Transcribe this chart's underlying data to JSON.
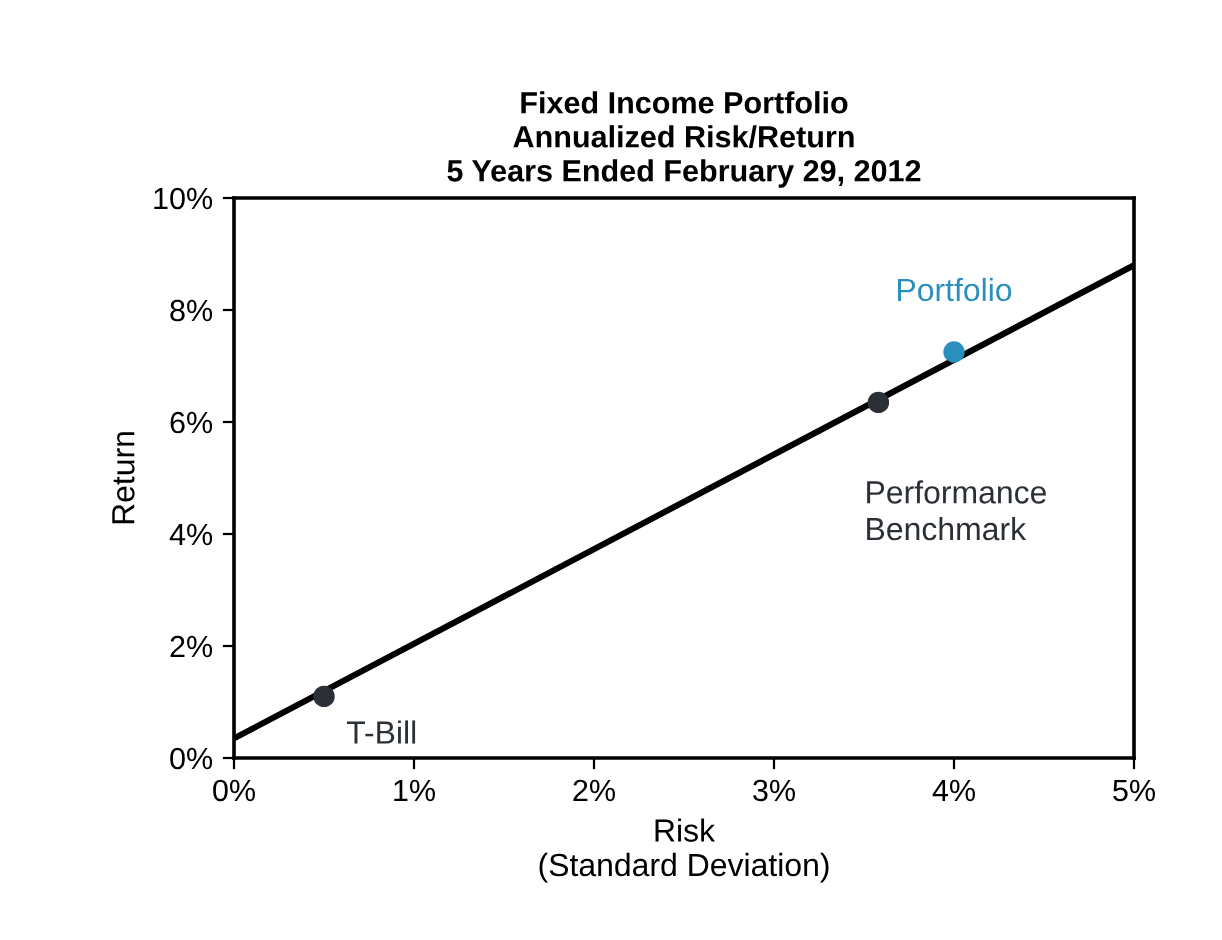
{
  "chart_data": {
    "type": "line",
    "title": "Fixed Income Portfolio\nAnnualized Risk/Return\n5 Years Ended February 29, 2012",
    "xlabel": "Risk\n(Standard Deviation)",
    "ylabel": "Return",
    "series": [
      {
        "color": "#000000",
        "x": [
          0,
          5
        ],
        "values": [
          0.35,
          8.8
        ],
        "marker": "none"
      },
      {
        "type": "scatter",
        "x": [
          0.5,
          3.58,
          4.0
        ],
        "values": [
          1.1,
          6.35,
          7.25
        ],
        "colors": [
          "#2b2f36",
          "#2b2f36",
          "#2a8fbd"
        ],
        "marker": "circle"
      }
    ],
    "annotations": [
      {
        "text": "T-Bill",
        "x": 0.5,
        "y": 1.1
      },
      {
        "text": "Performance\nBenchmark",
        "x": 3.58,
        "y": 6.35
      },
      {
        "text": "Portfolio",
        "x": 4.0,
        "y": 7.25
      }
    ],
    "xlim": [
      0,
      5
    ],
    "ylim": [
      0,
      10
    ],
    "xticks": [
      {
        "value": 0,
        "label": "0%"
      },
      {
        "value": 1,
        "label": "1%"
      },
      {
        "value": 2,
        "label": "2%"
      },
      {
        "value": 3,
        "label": "3%"
      },
      {
        "value": 4,
        "label": "4%"
      },
      {
        "value": 5,
        "label": "5%"
      }
    ],
    "yticks": [
      {
        "value": 0,
        "label": "0%"
      },
      {
        "value": 2,
        "label": "2%"
      },
      {
        "value": 4,
        "label": "4%"
      },
      {
        "value": 6,
        "label": "6%"
      },
      {
        "value": 8,
        "label": "8%"
      },
      {
        "value": 10,
        "label": "10%"
      }
    ],
    "grid": false
  }
}
